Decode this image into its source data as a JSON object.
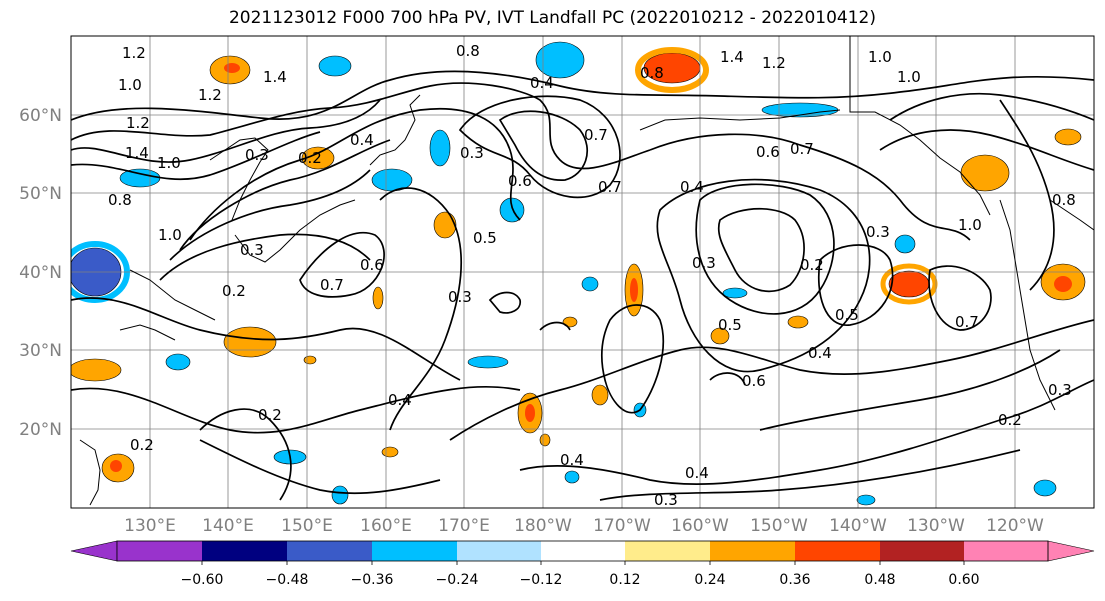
{
  "title": "2021123012 F000 700 hPa PV, IVT Landfall PC (2022010212 - 2022010412)",
  "map": {
    "lat_labels": [
      "60°N",
      "50°N",
      "40°N",
      "30°N",
      "20°N"
    ],
    "lon_labels": [
      "130°E",
      "140°E",
      "150°E",
      "160°E",
      "170°E",
      "180°W",
      "170°W",
      "160°W",
      "150°W",
      "140°W",
      "130°W",
      "120°W"
    ],
    "contour_labels": [
      "1.2",
      "1.0",
      "1.4",
      "1.2",
      "0.8",
      "1.4",
      "1.0",
      "1.2",
      "0.8",
      "1.0",
      "0.3",
      "0.2",
      "0.4",
      "1.4",
      "0.8",
      "0.4",
      "0.7",
      "0.3",
      "0.6",
      "0.7",
      "0.5",
      "0.4",
      "0.3",
      "0.2",
      "0.5",
      "0.4",
      "0.6",
      "0.7",
      "0.5",
      "0.2",
      "0.4",
      "0.2",
      "0.3",
      "0.6",
      "1.0",
      "0.3",
      "1.0",
      "0.7",
      "0.2",
      "0.3",
      "0.4",
      "0.6",
      "0.7",
      "0.4",
      "0.3",
      "0.2",
      "0.3",
      "1.0",
      "0.8",
      "1.2"
    ]
  },
  "colorbar": {
    "colors": [
      "#9933cc",
      "#000080",
      "#3a5bc8",
      "#00bfff",
      "#b0e2ff",
      "#ffffff",
      "#ffec8b",
      "#ffa500",
      "#ff4500",
      "#b22222",
      "#ff82b4"
    ],
    "tick_labels": [
      "−0.60",
      "−0.48",
      "−0.36",
      "−0.24",
      "−0.12",
      "0.12",
      "0.24",
      "0.36",
      "0.48",
      "0.60"
    ]
  }
}
